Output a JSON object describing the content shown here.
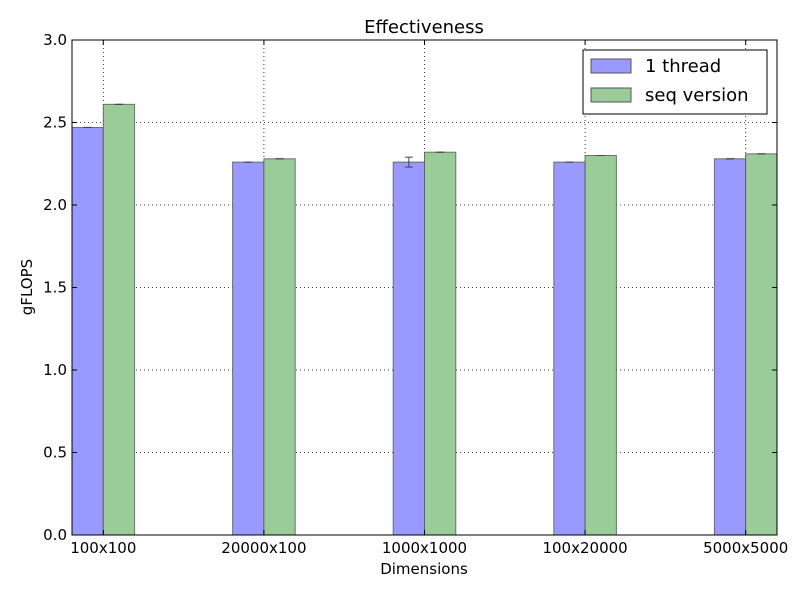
{
  "chart_data": {
    "type": "bar",
    "title": "Effectiveness",
    "xlabel": "Dimensions",
    "ylabel": "gFLOPS",
    "categories": [
      "100x100",
      "20000x100",
      "1000x1000",
      "100x20000",
      "5000x5000"
    ],
    "ylim": [
      0,
      3.0
    ],
    "yticks": [
      "0.0",
      "0.5",
      "1.0",
      "1.5",
      "2.0",
      "2.5",
      "3.0"
    ],
    "grid": true,
    "legend_position": "top-right",
    "series": [
      {
        "name": "1 thread",
        "color": "#9999ff",
        "values": [
          2.47,
          2.26,
          2.26,
          2.26,
          2.28
        ],
        "errors": [
          0.0,
          0.0,
          0.03,
          0.0,
          0.0
        ]
      },
      {
        "name": "seq version",
        "color": "#99cc99",
        "values": [
          2.61,
          2.28,
          2.32,
          2.3,
          2.31
        ],
        "errors": [
          0.0,
          0.0,
          0.0,
          0.0,
          0.0
        ]
      }
    ]
  }
}
